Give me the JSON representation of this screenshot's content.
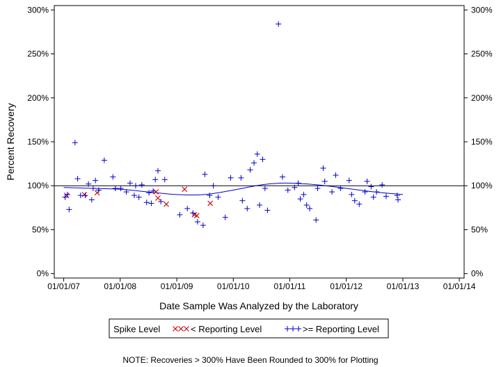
{
  "chart_data": {
    "type": "scatter",
    "title": "",
    "xlabel": "Date Sample Was Analyzed by the Laboratory",
    "ylabel": "Percent Recovery",
    "x_ticks": [
      "01/01/07",
      "01/01/08",
      "01/01/09",
      "01/01/10",
      "01/01/11",
      "01/01/12",
      "01/01/13",
      "01/01/14"
    ],
    "y_ticks": [
      "0%",
      "50%",
      "100%",
      "150%",
      "200%",
      "250%",
      "300%"
    ],
    "xlim": [
      "2006-11-01",
      "2014-02-01"
    ],
    "ylim": [
      -5,
      305
    ],
    "y_unit": "%",
    "reference_line": 100,
    "legend": {
      "title": "Spike Level",
      "entries": [
        {
          "label": "< Reporting Level",
          "marker": "x",
          "color": "#d01010"
        },
        {
          "label": ">= Reporting Level",
          "marker": "+",
          "color": "#0000cc"
        }
      ]
    },
    "note": "NOTE: Recoveries > 300% Have Been Rounded to 300% for Plotting",
    "series": [
      {
        "name": "< Reporting Level",
        "marker": "x",
        "color": "#d01010",
        "points": [
          [
            "2007-01-20",
            89
          ],
          [
            "2007-05-15",
            90
          ],
          [
            "2007-08-05",
            92
          ],
          [
            "2008-08-20",
            93
          ],
          [
            "2008-09-01",
            86
          ],
          [
            "2008-10-25",
            79
          ],
          [
            "2009-02-20",
            96
          ],
          [
            "2009-04-25",
            67
          ],
          [
            "2009-05-10",
            66
          ],
          [
            "2009-08-05",
            80
          ]
        ]
      },
      {
        "name": ">= Reporting Level",
        "marker": "+",
        "color": "#0000cc",
        "points": [
          [
            "2007-01-10",
            87
          ],
          [
            "2007-01-25",
            90
          ],
          [
            "2007-02-05",
            73
          ],
          [
            "2007-03-15",
            149
          ],
          [
            "2007-04-01",
            108
          ],
          [
            "2007-04-20",
            89
          ],
          [
            "2007-05-20",
            89
          ],
          [
            "2007-06-10",
            102
          ],
          [
            "2007-07-01",
            84
          ],
          [
            "2007-07-10",
            97
          ],
          [
            "2007-07-25",
            106
          ],
          [
            "2007-08-15",
            95
          ],
          [
            "2007-09-20",
            129
          ],
          [
            "2007-11-15",
            110
          ],
          [
            "2007-12-01",
            97
          ],
          [
            "2008-01-05",
            97
          ],
          [
            "2008-02-10",
            93
          ],
          [
            "2008-03-05",
            103
          ],
          [
            "2008-04-01",
            89
          ],
          [
            "2008-04-10",
            100
          ],
          [
            "2008-05-01",
            87
          ],
          [
            "2008-05-20",
            101
          ],
          [
            "2008-06-20",
            81
          ],
          [
            "2008-07-05",
            92
          ],
          [
            "2008-07-20",
            80
          ],
          [
            "2008-08-01",
            94
          ],
          [
            "2008-08-15",
            107
          ],
          [
            "2008-09-01",
            117
          ],
          [
            "2008-09-20",
            82
          ],
          [
            "2008-10-15",
            107
          ],
          [
            "2009-01-20",
            67
          ],
          [
            "2009-03-10",
            74
          ],
          [
            "2009-04-15",
            69
          ],
          [
            "2009-05-15",
            59
          ],
          [
            "2009-06-20",
            55
          ],
          [
            "2009-07-01",
            113
          ],
          [
            "2009-08-01",
            89
          ],
          [
            "2009-08-25",
            100
          ],
          [
            "2009-09-25",
            87
          ],
          [
            "2009-11-10",
            64
          ],
          [
            "2009-12-15",
            109
          ],
          [
            "2010-02-20",
            109
          ],
          [
            "2010-03-01",
            83
          ],
          [
            "2010-04-01",
            74
          ],
          [
            "2010-04-20",
            118
          ],
          [
            "2010-05-15",
            126
          ],
          [
            "2010-06-05",
            136
          ],
          [
            "2010-06-20",
            78
          ],
          [
            "2010-07-10",
            130
          ],
          [
            "2010-07-25",
            97
          ],
          [
            "2010-08-10",
            72
          ],
          [
            "2010-10-20",
            284
          ],
          [
            "2010-11-15",
            110
          ],
          [
            "2010-12-20",
            95
          ],
          [
            "2011-02-01",
            98
          ],
          [
            "2011-02-25",
            103
          ],
          [
            "2011-03-10",
            85
          ],
          [
            "2011-04-01",
            90
          ],
          [
            "2011-04-20",
            78
          ],
          [
            "2011-05-10",
            74
          ],
          [
            "2011-06-20",
            61
          ],
          [
            "2011-06-30",
            97
          ],
          [
            "2011-08-05",
            120
          ],
          [
            "2011-08-15",
            105
          ],
          [
            "2011-10-01",
            93
          ],
          [
            "2011-10-25",
            112
          ],
          [
            "2011-11-25",
            97
          ],
          [
            "2012-01-20",
            106
          ],
          [
            "2012-02-05",
            90
          ],
          [
            "2012-02-25",
            83
          ],
          [
            "2012-03-25",
            79
          ],
          [
            "2012-05-01",
            93
          ],
          [
            "2012-05-15",
            105
          ],
          [
            "2012-06-10",
            99
          ],
          [
            "2012-06-25",
            87
          ],
          [
            "2012-07-15",
            93
          ],
          [
            "2012-08-20",
            101
          ],
          [
            "2012-09-15",
            88
          ],
          [
            "2012-11-25",
            89
          ],
          [
            "2012-12-01",
            84
          ]
        ]
      }
    ],
    "trend": {
      "name": "",
      "color": "#0000cc",
      "points": [
        [
          "2007-01-01",
          98
        ],
        [
          "2007-07-01",
          97
        ],
        [
          "2008-01-01",
          96
        ],
        [
          "2008-07-01",
          93
        ],
        [
          "2009-01-01",
          90
        ],
        [
          "2009-07-01",
          90
        ],
        [
          "2010-01-01",
          95
        ],
        [
          "2010-07-01",
          101
        ],
        [
          "2010-12-01",
          103
        ],
        [
          "2011-07-01",
          101
        ],
        [
          "2012-01-01",
          97
        ],
        [
          "2012-07-01",
          93
        ],
        [
          "2013-01-01",
          90
        ]
      ]
    }
  }
}
